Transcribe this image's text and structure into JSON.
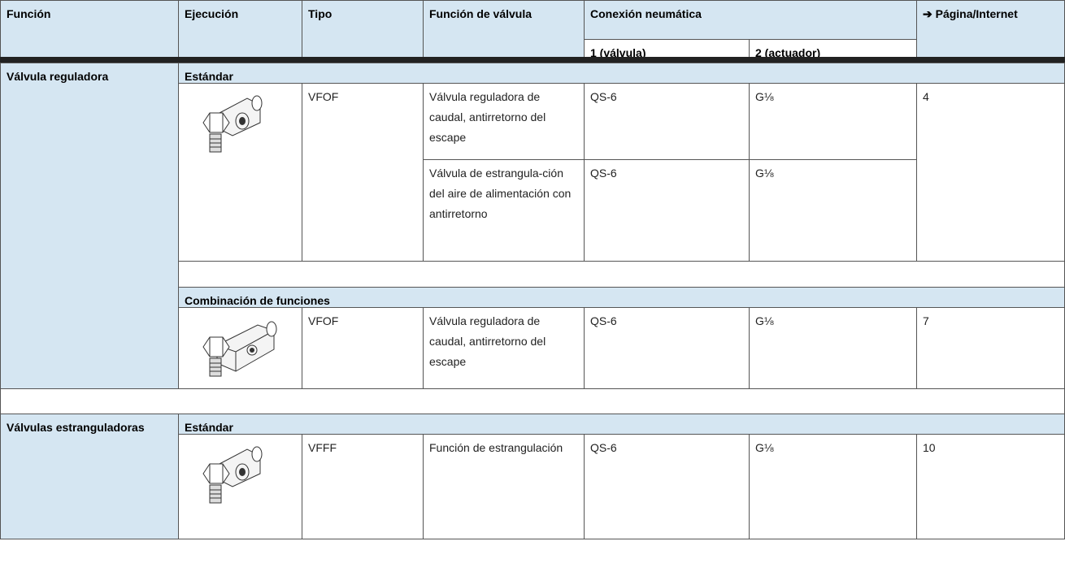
{
  "header": {
    "columns": [
      "Función",
      "Ejecución",
      "Tipo",
      "Función de válvula",
      "Conexión neumática",
      "➔ Página/Internet"
    ],
    "subcolumns": [
      "1 (válvula)",
      "2 (actuador)"
    ]
  },
  "sections": [
    {
      "label": "Válvula reguladora",
      "groups": [
        {
          "label": "Estándar",
          "items": [
            {
              "tipo": "VFOF",
              "pagina": "4",
              "functions": [
                {
                  "text": "Válvula reguladora de caudal, antirretorno del escape",
                  "con1": "QS-6",
                  "con2": "G⅛"
                },
                {
                  "text": "Válvula de estrangula-ción del aire de alimentación con antirretorno",
                  "con1": "QS-6",
                  "con2": "G⅛"
                }
              ]
            }
          ]
        },
        {
          "label": "Combinación de funciones",
          "items": [
            {
              "tipo": "VFOF",
              "pagina": "7",
              "functions": [
                {
                  "text": "Válvula reguladora de caudal, antirretorno del escape",
                  "con1": "QS-6",
                  "con2": "G⅛"
                }
              ]
            }
          ]
        }
      ]
    },
    {
      "label": "Válvulas estranguladoras",
      "groups": [
        {
          "label": "Estándar",
          "items": [
            {
              "tipo": "VFFF",
              "pagina": "10",
              "functions": [
                {
                  "text": "Función de estrangulación",
                  "con1": "QS-6",
                  "con2": "G⅛"
                }
              ]
            }
          ]
        }
      ]
    }
  ]
}
